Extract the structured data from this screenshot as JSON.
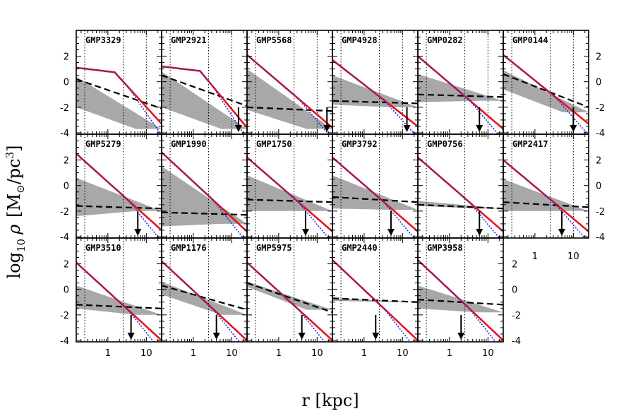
{
  "figure": {
    "xlabel": "r  [kpc]",
    "ylabel_parts": {
      "log": "log",
      "sub": "10",
      "rho": "ρ",
      "unit_open": "[M",
      "sun": "⊙",
      "unit_mid": "/pc",
      "exp": "3",
      "unit_close": "]"
    }
  },
  "colors": {
    "total": "#e8141e",
    "dm": "#1c2ee6",
    "band": "#a8a8a8",
    "gas": "#000000",
    "frame": "#000000"
  },
  "chart_data": {
    "type": "line",
    "title": "",
    "xlabel": "r  [kpc]",
    "ylabel": "log10 ρ [M⊙/pc³]",
    "xscale": "log",
    "xlim": [
      0.15,
      25
    ],
    "ylim": [
      -4,
      3.8
    ],
    "xticks": [
      1,
      10
    ],
    "xtick_labels": [
      "1",
      "10"
    ],
    "yticks": [
      -4,
      -2,
      0,
      2
    ],
    "ytick_labels": [
      "-4",
      "-2",
      "0",
      "2"
    ],
    "vlines_kpc": [
      0.25,
      2.5
    ],
    "series_legend": [
      "total (red solid)",
      "dark matter (blue dotted)",
      "grey band (stellar range)",
      "black dashed (gas)"
    ],
    "panels": [
      {
        "name": "GMP3329",
        "row": 0,
        "col": 0,
        "inner": 1.1,
        "rb": 2.5,
        "slope": -1.2,
        "outer": -3.3,
        "gas0": 0.2,
        "gas_end": -2.1,
        "band_hi0": 0.4,
        "band_lo0": -2.0,
        "band_end": -3.7,
        "arrow": null
      },
      {
        "name": "GMP2921",
        "row": 0,
        "col": 1,
        "inner": 1.2,
        "rb": 2.0,
        "slope": -1.2,
        "outer": -3.6,
        "gas0": 0.5,
        "gas_end": -1.9,
        "band_hi0": 0.8,
        "band_lo0": -2.0,
        "band_end": -3.7,
        "arrow": 15
      },
      {
        "name": "GMP5568",
        "row": 0,
        "col": 2,
        "inner": 2.1,
        "rb": 0.25,
        "slope": -1.4,
        "outer": -3.6,
        "gas0": -2.0,
        "gas_end": -2.3,
        "band_hi0": 1.0,
        "band_lo0": -2.2,
        "band_end": -3.7,
        "arrow": 18
      },
      {
        "name": "GMP4928",
        "row": 0,
        "col": 3,
        "inner": 1.7,
        "rb": 0.25,
        "slope": -1.3,
        "outer": -3.5,
        "gas0": -1.5,
        "gas_end": -1.7,
        "band_hi0": 0.5,
        "band_lo0": -1.8,
        "band_end": -2.0,
        "arrow": 13
      },
      {
        "name": "GMP0282",
        "row": 0,
        "col": 4,
        "inner": 2.0,
        "rb": 0.25,
        "slope": -1.5,
        "outer": -3.7,
        "gas0": -1.0,
        "gas_end": -1.2,
        "band_hi0": 0.6,
        "band_lo0": -1.6,
        "band_end": -1.5,
        "arrow": 6
      },
      {
        "name": "GMP0144",
        "row": 0,
        "col": 5,
        "inner": 2.1,
        "rb": 0.25,
        "slope": -1.6,
        "outer": -3.3,
        "gas0": 0.6,
        "gas_end": -2.0,
        "band_hi0": 0.9,
        "band_lo0": -0.6,
        "band_end": -2.4,
        "arrow": 10
      },
      {
        "name": "GMP5279",
        "row": 1,
        "col": 0,
        "inner": 2.5,
        "rb": 0.25,
        "slope": -1.7,
        "outer": -3.5,
        "gas0": -1.6,
        "gas_end": -1.8,
        "band_hi0": 0.6,
        "band_lo0": -2.4,
        "band_end": -2.0,
        "arrow": 6
      },
      {
        "name": "GMP1990",
        "row": 1,
        "col": 1,
        "inner": 2.6,
        "rb": 0.25,
        "slope": -1.9,
        "outer": -3.6,
        "gas0": -2.1,
        "gas_end": -2.3,
        "band_hi0": 1.5,
        "band_lo0": -3.2,
        "band_end": -3.0,
        "arrow": null
      },
      {
        "name": "GMP1750",
        "row": 1,
        "col": 2,
        "inner": 2.2,
        "rb": 0.25,
        "slope": -1.6,
        "outer": -3.6,
        "gas0": -1.1,
        "gas_end": -1.3,
        "band_hi0": 0.8,
        "band_lo0": -2.0,
        "band_end": -2.0,
        "arrow": 5
      },
      {
        "name": "GMP3792",
        "row": 1,
        "col": 3,
        "inner": 2.2,
        "rb": 0.25,
        "slope": -1.5,
        "outer": -3.6,
        "gas0": -0.9,
        "gas_end": -1.3,
        "band_hi0": 0.8,
        "band_lo0": -1.8,
        "band_end": -1.9,
        "arrow": 5
      },
      {
        "name": "GMP0756",
        "row": 1,
        "col": 4,
        "inner": 2.2,
        "rb": 0.25,
        "slope": -1.6,
        "outer": -3.6,
        "gas0": -1.5,
        "gas_end": -1.8,
        "band_hi0": -1.2,
        "band_lo0": -1.6,
        "band_end": -1.8,
        "arrow": 6
      },
      {
        "name": "GMP2417",
        "row": 1,
        "col": 5,
        "inner": 2.0,
        "rb": 0.25,
        "slope": -1.5,
        "outer": -3.6,
        "gas0": -1.3,
        "gas_end": -1.7,
        "band_hi0": 0.5,
        "band_lo0": -2.0,
        "band_end": -2.0,
        "arrow": 5
      },
      {
        "name": "GMP3510",
        "row": 2,
        "col": 0,
        "inner": 2.1,
        "rb": 0.25,
        "slope": -1.5,
        "outer": -4.0,
        "gas0": -1.2,
        "gas_end": -1.5,
        "band_hi0": 0.3,
        "band_lo0": -1.5,
        "band_end": -2.0,
        "arrow": 4
      },
      {
        "name": "GMP1176",
        "row": 2,
        "col": 1,
        "inner": 2.2,
        "rb": 0.25,
        "slope": -1.6,
        "outer": -4.0,
        "gas0": 0.3,
        "gas_end": -1.6,
        "band_hi0": 0.6,
        "band_lo0": -0.4,
        "band_end": -2.0,
        "arrow": 4
      },
      {
        "name": "GMP5975",
        "row": 2,
        "col": 2,
        "inner": 2.1,
        "rb": 0.25,
        "slope": -1.4,
        "outer": -4.0,
        "gas0": 0.5,
        "gas_end": -1.8,
        "band_hi0": 0.6,
        "band_lo0": 0.2,
        "band_end": -1.6,
        "arrow": 4
      },
      {
        "name": "GMP2440",
        "row": 2,
        "col": 3,
        "inner": 2.3,
        "rb": 0.25,
        "slope": -1.7,
        "outer": -4.0,
        "gas0": -0.7,
        "gas_end": -1.0,
        "band_hi0": -0.7,
        "band_lo0": -0.9,
        "band_end": -1.0,
        "arrow": 2
      },
      {
        "name": "GMP3958",
        "row": 2,
        "col": 4,
        "inner": 2.3,
        "rb": 0.25,
        "slope": -1.6,
        "outer": -4.0,
        "gas0": -0.8,
        "gas_end": -1.2,
        "band_hi0": 0.3,
        "band_lo0": -1.5,
        "band_end": -1.8,
        "arrow": 2
      }
    ]
  }
}
